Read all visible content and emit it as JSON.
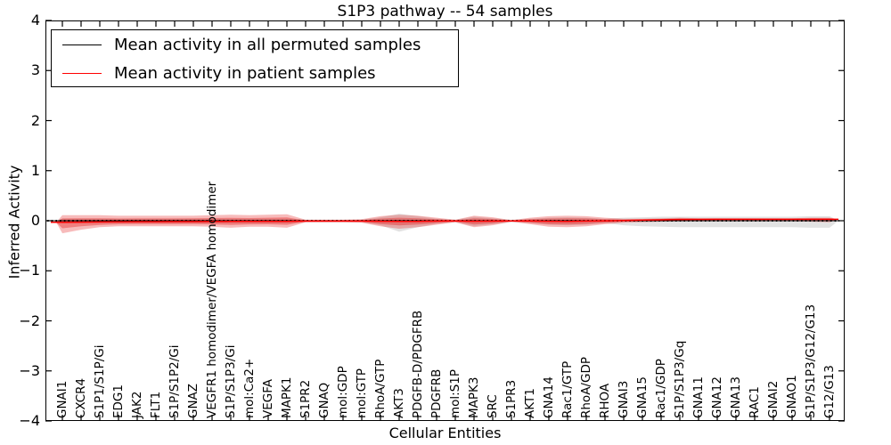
{
  "header": {
    "title": "S1P3 pathway -- 54 samples"
  },
  "legend": {
    "items": [
      {
        "label": "Mean activity in all permuted samples",
        "color": "#000000"
      },
      {
        "label": "Mean activity in patient samples",
        "color": "#ff0000"
      }
    ]
  },
  "colors": {
    "patient_line": "#ff0000",
    "permuted_line": "#000000",
    "patient_band_fill": "rgba(230,30,30,0.30)",
    "patient_band_inner_fill": "rgba(230,30,30,0.38)",
    "permuted_band_fill": "rgba(110,110,110,0.20)"
  },
  "chart_data": {
    "type": "area",
    "title": "S1P3 pathway -- 54 samples",
    "xlabel": "Cellular Entities",
    "ylabel": "Inferred Activity",
    "ylim": [
      -4,
      4
    ],
    "ytick_labels": [
      "4",
      "3",
      "2",
      "1",
      "0",
      "−1",
      "−2",
      "−3",
      "−4"
    ],
    "grid": false,
    "legend_position": "upper left",
    "categories": [
      "GNAI1",
      "CXCR4",
      "S1P1/S1P/Gi",
      "EDG1",
      "JAK2",
      "FLT1",
      "S1P/S1P2/Gi",
      "GNAZ",
      "VEGFR1 homodimer/VEGFA homodimer",
      "S1P/S1P3/Gi",
      "mol:Ca2+",
      "VEGFA",
      "MAPK1",
      "S1PR2",
      "GNAQ",
      "mol:GDP",
      "mol:GTP",
      "RhoA/GTP",
      "AKT3",
      "PDGFB-D/PDGFRB",
      "PDGFRB",
      "mol:S1P",
      "MAPK3",
      "SRC",
      "S1PR3",
      "AKT1",
      "GNA14",
      "Rac1/GTP",
      "RhoA/GDP",
      "RHOA",
      "GNAI3",
      "GNA15",
      "Rac1/GDP",
      "S1P/S1P3/Gq",
      "GNA11",
      "GNA12",
      "GNA13",
      "RAC1",
      "GNAI2",
      "GNAO1",
      "S1P/S1P3/G12/G13",
      "G12/G13"
    ],
    "series": [
      {
        "name": "Mean activity in all permuted samples",
        "color": "#000000",
        "values": [
          0,
          0,
          0,
          0,
          0,
          0,
          0,
          0,
          0,
          0,
          0,
          0,
          0,
          0,
          0,
          0,
          0,
          0,
          0,
          0,
          0,
          0,
          0,
          0,
          0,
          0,
          0,
          0,
          0,
          0,
          0,
          0,
          0,
          0,
          0,
          0,
          0,
          0,
          0,
          0,
          0,
          0
        ]
      },
      {
        "name": "Mean activity in patient samples",
        "color": "#ff0000",
        "values": [
          -0.03,
          -0.028,
          -0.025,
          -0.022,
          -0.02,
          -0.02,
          -0.018,
          -0.017,
          -0.016,
          -0.015,
          -0.014,
          -0.013,
          -0.012,
          -0.008,
          -0.008,
          -0.008,
          -0.008,
          -0.01,
          -0.012,
          -0.012,
          -0.008,
          -0.006,
          -0.01,
          -0.008,
          -0.004,
          -0.006,
          -0.01,
          -0.012,
          -0.008,
          -0.002,
          0.005,
          0.012,
          0.018,
          0.025,
          0.027,
          0.028,
          0.028,
          0.028,
          0.028,
          0.028,
          0.028,
          0.028
        ]
      }
    ],
    "bands": [
      {
        "name": "permuted-activity-range",
        "color": "gray",
        "top": [
          0.04,
          0.04,
          0.04,
          0.04,
          0.04,
          0.04,
          0.04,
          0.04,
          0.04,
          0.04,
          0.04,
          0.04,
          0.04,
          0.02,
          0.02,
          0.02,
          0.02,
          0.07,
          0.14,
          0.09,
          0.04,
          0.02,
          0.08,
          0.05,
          0.02,
          0.04,
          0.06,
          0.07,
          0.06,
          0.04,
          0.06,
          0.07,
          0.08,
          0.08,
          0.08,
          0.08,
          0.08,
          0.08,
          0.08,
          0.08,
          0.09,
          0.09
        ],
        "bottom": [
          -0.05,
          -0.05,
          -0.05,
          -0.05,
          -0.05,
          -0.05,
          -0.05,
          -0.05,
          -0.05,
          -0.05,
          -0.05,
          -0.05,
          -0.05,
          -0.03,
          -0.03,
          -0.03,
          -0.03,
          -0.09,
          -0.22,
          -0.13,
          -0.06,
          -0.03,
          -0.11,
          -0.07,
          -0.03,
          -0.05,
          -0.08,
          -0.09,
          -0.08,
          -0.05,
          -0.09,
          -0.11,
          -0.12,
          -0.13,
          -0.13,
          -0.13,
          -0.13,
          -0.13,
          -0.13,
          -0.13,
          -0.14,
          -0.14
        ]
      },
      {
        "name": "patient-activity-range",
        "color": "red",
        "top": [
          0.11,
          0.11,
          0.11,
          0.1,
          0.1,
          0.1,
          0.1,
          0.1,
          0.11,
          0.12,
          0.11,
          0.12,
          0.13,
          0.02,
          0.02,
          0.02,
          0.03,
          0.09,
          0.12,
          0.1,
          0.06,
          0.02,
          0.1,
          0.07,
          0.01,
          0.06,
          0.09,
          0.1,
          0.09,
          0.06,
          0.04,
          0.04,
          0.05,
          0.06,
          0.05,
          0.05,
          0.05,
          0.05,
          0.05,
          0.05,
          0.06,
          0.06
        ],
        "bottom": [
          -0.25,
          -0.18,
          -0.13,
          -0.11,
          -0.11,
          -0.11,
          -0.11,
          -0.11,
          -0.12,
          -0.14,
          -0.12,
          -0.12,
          -0.14,
          -0.03,
          -0.03,
          -0.03,
          -0.04,
          -0.11,
          -0.16,
          -0.13,
          -0.08,
          -0.03,
          -0.13,
          -0.09,
          -0.02,
          -0.07,
          -0.12,
          -0.13,
          -0.11,
          -0.07,
          -0.04,
          -0.03,
          -0.02,
          -0.01,
          -0.01,
          -0.01,
          -0.01,
          -0.01,
          -0.01,
          -0.01,
          -0.02,
          -0.03
        ]
      }
    ]
  }
}
